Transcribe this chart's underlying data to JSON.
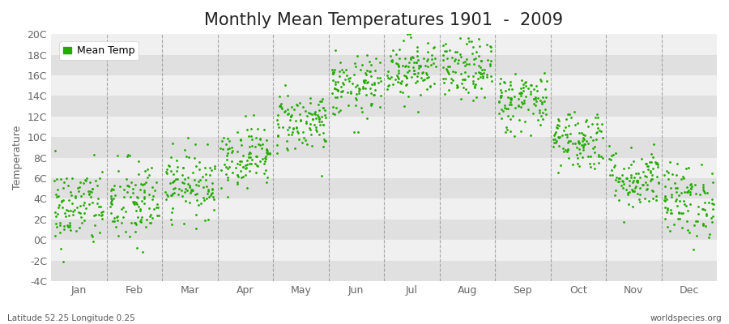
{
  "title": "Monthly Mean Temperatures 1901  -  2009",
  "ylabel": "Temperature",
  "bottom_left_text": "Latitude 52.25 Longitude 0.25",
  "bottom_right_text": "worldspecies.org",
  "legend_label": "Mean Temp",
  "months": [
    "Jan",
    "Feb",
    "Mar",
    "Apr",
    "May",
    "Jun",
    "Jul",
    "Aug",
    "Sep",
    "Oct",
    "Nov",
    "Dec"
  ],
  "mean_temps": [
    3.2,
    3.5,
    5.5,
    8.2,
    11.5,
    14.8,
    16.8,
    16.5,
    13.5,
    9.8,
    6.0,
    3.8
  ],
  "std_temps": [
    2.0,
    2.2,
    1.6,
    1.5,
    1.5,
    1.5,
    1.5,
    1.5,
    1.5,
    1.5,
    1.5,
    1.8
  ],
  "n_years": 109,
  "ylim": [
    -4,
    20
  ],
  "yticks": [
    -4,
    -2,
    0,
    2,
    4,
    6,
    8,
    10,
    12,
    14,
    16,
    18,
    20
  ],
  "ytick_labels": [
    "-4C",
    "-2C",
    "0C",
    "2C",
    "4C",
    "6C",
    "8C",
    "10C",
    "12C",
    "14C",
    "16C",
    "18C",
    "20C"
  ],
  "dot_color": "#22aa00",
  "dot_size": 4,
  "fig_bg_color": "#ffffff",
  "plot_bg_color": "#e8e8e8",
  "stripe_light_color": "#f0f0f0",
  "stripe_dark_color": "#e0e0e0",
  "vline_color": "#888888",
  "title_fontsize": 15,
  "label_fontsize": 9,
  "tick_fontsize": 9,
  "tick_color": "#666666",
  "seed": 42
}
